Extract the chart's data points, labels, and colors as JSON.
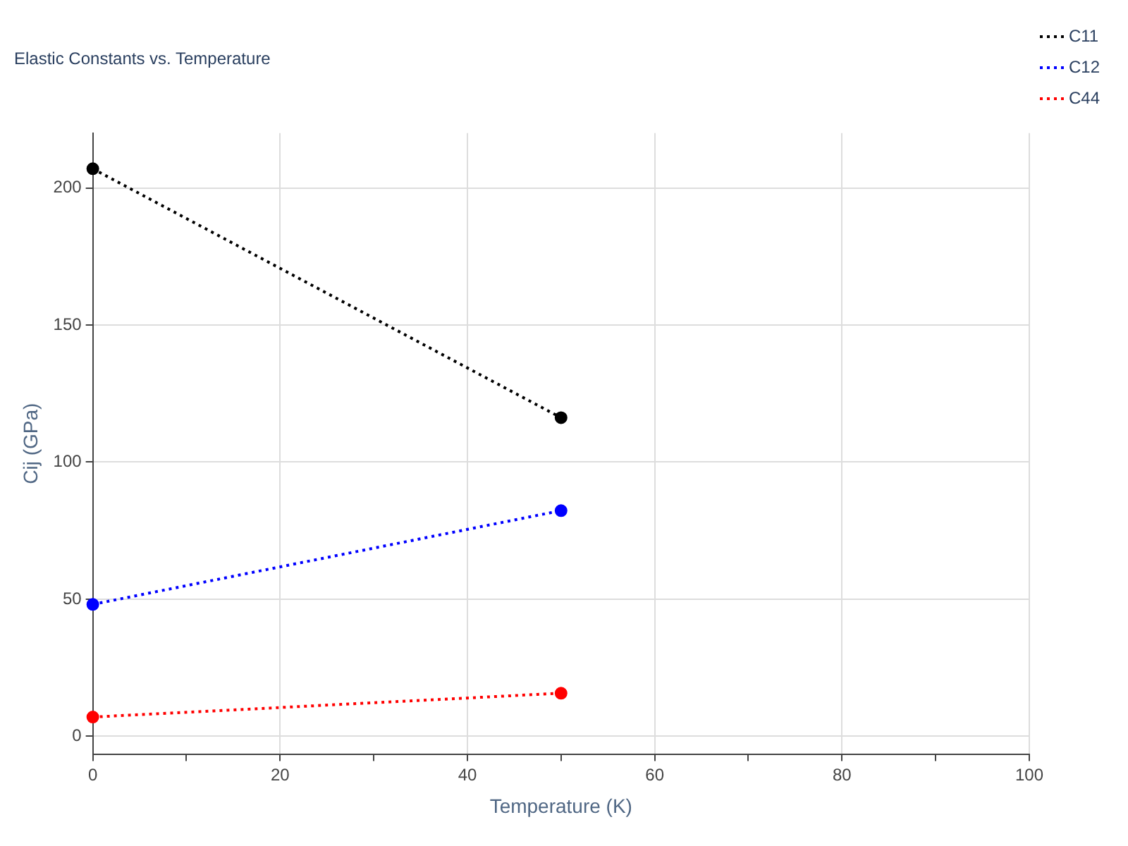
{
  "chart_data": {
    "type": "line",
    "title": "Elastic Constants vs. Temperature",
    "xlabel": "Temperature (K)",
    "ylabel": "Cij (GPa)",
    "series": [
      {
        "name": "C11",
        "color": "#000000",
        "values": [
          207,
          116.2
        ]
      },
      {
        "name": "C12",
        "color": "#0000ff",
        "values": [
          48.1,
          82.3
        ]
      },
      {
        "name": "C44",
        "color": "#ff0000",
        "values": [
          7,
          15.7
        ]
      }
    ],
    "x": [
      0,
      50
    ],
    "xlim": [
      0,
      100
    ],
    "xticks": [
      0,
      {
        "value": 10,
        "label": null
      },
      20,
      {
        "value": 30,
        "label": null
      },
      40,
      {
        "value": 50,
        "label": null
      },
      60,
      {
        "value": 70,
        "label": null
      },
      80,
      {
        "value": 90,
        "label": null
      },
      100
    ],
    "ylim": [
      -6.5,
      220
    ],
    "yticks": [
      0,
      50,
      100,
      150,
      200
    ],
    "grid": true,
    "legend": "top right",
    "marker": "circle",
    "line_style": "dotted"
  }
}
